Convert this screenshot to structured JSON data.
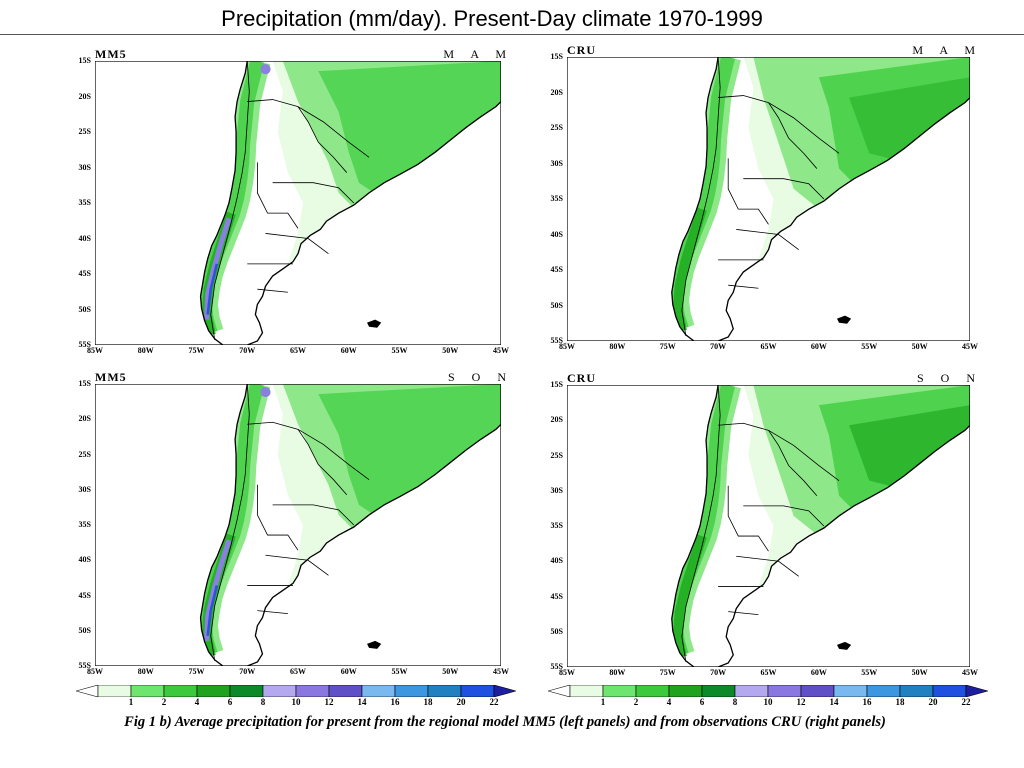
{
  "title": "Precipitation (mm/day). Present-Day climate 1970-1999",
  "caption": "Fig 1 b) Average precipitation for present from the regional model MM5 (left panels) and from observations CRU (right panels)",
  "lat_ticks": [
    "15S",
    "20S",
    "25S",
    "30S",
    "35S",
    "40S",
    "45S",
    "50S",
    "55S"
  ],
  "lon_ticks": [
    "85W",
    "80W",
    "75W",
    "70W",
    "65W",
    "60W",
    "55W",
    "50W",
    "45W"
  ],
  "panels": [
    {
      "id": "mm5-mam",
      "model": "MM5",
      "season": "M A M"
    },
    {
      "id": "cru-mam",
      "model": "CRU",
      "season": "M A M"
    },
    {
      "id": "mm5-son",
      "model": "MM5",
      "season": "S O N"
    },
    {
      "id": "cru-son",
      "model": "CRU",
      "season": "S O N"
    }
  ],
  "colorbar": {
    "ticks": [
      "1",
      "2",
      "4",
      "6",
      "8",
      "10",
      "12",
      "14",
      "16",
      "18",
      "20",
      "22"
    ],
    "colors": [
      "#ffffff",
      "#e8fbe3",
      "#6ee56e",
      "#3dc93d",
      "#1fa31f",
      "#0c8a2a",
      "#b4a8ee",
      "#8a78e0",
      "#6050c8",
      "#7ab8f0",
      "#3c96e0",
      "#2080c0",
      "#2050e0",
      "#1e1ea0"
    ]
  },
  "colors": {
    "very_light_green": "#e8fbe3",
    "light_green": "#8ee88a",
    "mid_green": "#4fd34f",
    "dark_green": "#26b026",
    "purple": "#8a80e0",
    "blue": "#3050e0"
  }
}
